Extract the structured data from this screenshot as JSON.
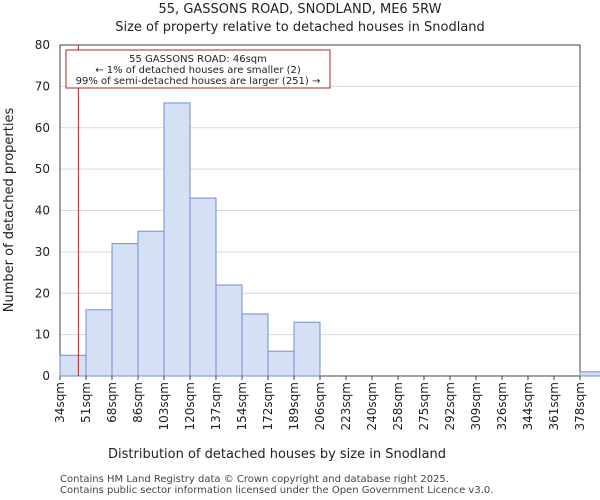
{
  "chart_data": {
    "type": "bar",
    "title": "55, GASSONS ROAD, SNODLAND, ME6 5RW",
    "subtitle": "Size of property relative to detached houses in Snodland",
    "xlabel": "Distribution of detached houses by size in Snodland",
    "ylabel": "Number of detached properties",
    "categories": [
      "34sqm",
      "51sqm",
      "68sqm",
      "86sqm",
      "103sqm",
      "120sqm",
      "137sqm",
      "154sqm",
      "172sqm",
      "189sqm",
      "206sqm",
      "223sqm",
      "240sqm",
      "258sqm",
      "275sqm",
      "292sqm",
      "309sqm",
      "326sqm",
      "344sqm",
      "361sqm",
      "378sqm"
    ],
    "values": [
      5,
      16,
      32,
      35,
      66,
      43,
      22,
      15,
      6,
      13,
      0,
      0,
      0,
      0,
      0,
      0,
      0,
      0,
      0,
      0,
      1
    ],
    "ylim": [
      0,
      80
    ],
    "yticks": [
      0,
      10,
      20,
      30,
      40,
      50,
      60,
      70,
      80
    ],
    "marker_value": 46,
    "annotation": {
      "line1": "55 GASSONS ROAD: 46sqm",
      "line2": "← 1% of detached houses are smaller (2)",
      "line3": "99% of semi-detached houses are larger (251) →"
    },
    "colors": {
      "bar_fill": "#d6e0f5",
      "bar_edge": "#6f8fcf",
      "marker": "#b22222",
      "grid": "#d9d9d9"
    }
  },
  "footer": {
    "line1": "Contains HM Land Registry data © Crown copyright and database right 2025.",
    "line2": "Contains public sector information licensed under the Open Government Licence v3.0."
  }
}
